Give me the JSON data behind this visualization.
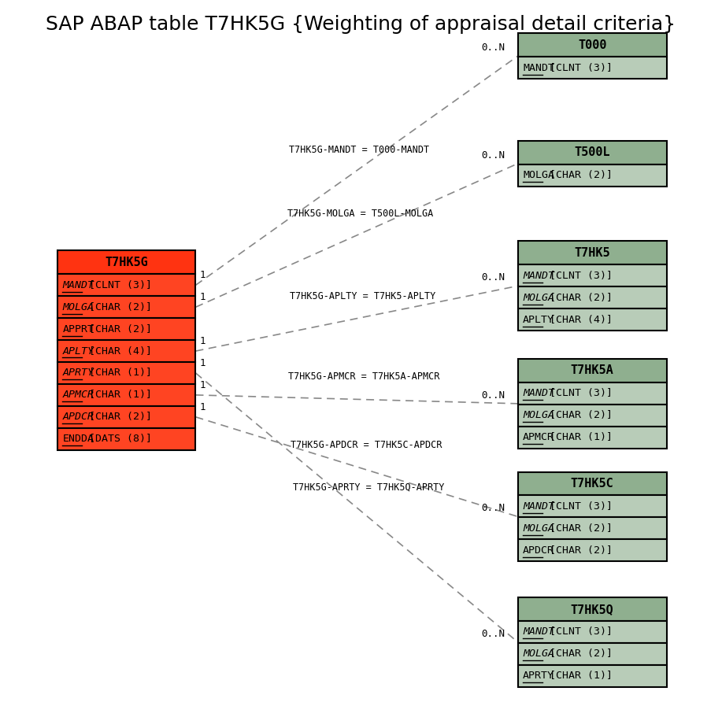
{
  "title": "SAP ABAP table T7HK5G {Weighting of appraisal detail criteria}",
  "title_fontsize": 18,
  "main_table": {
    "name": "T7HK5G",
    "header_color": "#FF3311",
    "row_color": "#FF4422",
    "border_color": "#000000",
    "fields": [
      {
        "name": "MANDT",
        "type": "[CLNT (3)]",
        "italic": true,
        "underline": true
      },
      {
        "name": "MOLGA",
        "type": "[CHAR (2)]",
        "italic": true,
        "underline": true
      },
      {
        "name": "APPRT",
        "type": "[CHAR (2)]",
        "italic": false,
        "underline": true
      },
      {
        "name": "APLTY",
        "type": "[CHAR (4)]",
        "italic": true,
        "underline": true
      },
      {
        "name": "APRTY",
        "type": "[CHAR (1)]",
        "italic": true,
        "underline": true
      },
      {
        "name": "APMCR",
        "type": "[CHAR (1)]",
        "italic": true,
        "underline": true
      },
      {
        "name": "APDCR",
        "type": "[CHAR (2)]",
        "italic": true,
        "underline": true
      },
      {
        "name": "ENDDA",
        "type": "[DATS (8)]",
        "italic": false,
        "underline": true
      }
    ]
  },
  "related_tables": [
    {
      "name": "T000",
      "header_color": "#8FAF8F",
      "row_color": "#B8CCB8",
      "border_color": "#000000",
      "fields": [
        {
          "name": "MANDT",
          "type": "[CLNT (3)]",
          "italic": false,
          "underline": true
        }
      ],
      "relation_label": "T7HK5G-MANDT = T000-MANDT",
      "from_field_idx": 0,
      "n_label": "0..N"
    },
    {
      "name": "T500L",
      "header_color": "#8FAF8F",
      "row_color": "#B8CCB8",
      "border_color": "#000000",
      "fields": [
        {
          "name": "MOLGA",
          "type": "[CHAR (2)]",
          "italic": false,
          "underline": true
        }
      ],
      "relation_label": "T7HK5G-MOLGA = T500L-MOLGA",
      "from_field_idx": 1,
      "n_label": "0..N"
    },
    {
      "name": "T7HK5",
      "header_color": "#8FAF8F",
      "row_color": "#B8CCB8",
      "border_color": "#000000",
      "fields": [
        {
          "name": "MANDT",
          "type": "[CLNT (3)]",
          "italic": true,
          "underline": true
        },
        {
          "name": "MOLGA",
          "type": "[CHAR (2)]",
          "italic": true,
          "underline": true
        },
        {
          "name": "APLTY",
          "type": "[CHAR (4)]",
          "italic": false,
          "underline": true
        }
      ],
      "relation_label": "T7HK5G-APLTY = T7HK5-APLTY",
      "from_field_idx": 3,
      "n_label": "0..N"
    },
    {
      "name": "T7HK5A",
      "header_color": "#8FAF8F",
      "row_color": "#B8CCB8",
      "border_color": "#000000",
      "fields": [
        {
          "name": "MANDT",
          "type": "[CLNT (3)]",
          "italic": true,
          "underline": true
        },
        {
          "name": "MOLGA",
          "type": "[CHAR (2)]",
          "italic": true,
          "underline": true
        },
        {
          "name": "APMCR",
          "type": "[CHAR (1)]",
          "italic": false,
          "underline": true
        }
      ],
      "relation_label": "T7HK5G-APMCR = T7HK5A-APMCR",
      "from_field_idx": 5,
      "n_label": "0..N"
    },
    {
      "name": "T7HK5C",
      "header_color": "#8FAF8F",
      "row_color": "#B8CCB8",
      "border_color": "#000000",
      "fields": [
        {
          "name": "MANDT",
          "type": "[CLNT (3)]",
          "italic": true,
          "underline": true
        },
        {
          "name": "MOLGA",
          "type": "[CHAR (2)]",
          "italic": true,
          "underline": true
        },
        {
          "name": "APDCR",
          "type": "[CHAR (2)]",
          "italic": false,
          "underline": true
        }
      ],
      "relation_label": "T7HK5G-APDCR = T7HK5C-APDCR",
      "from_field_idx": 6,
      "n_label": "0..N"
    },
    {
      "name": "T7HK5Q",
      "header_color": "#8FAF8F",
      "row_color": "#B8CCB8",
      "border_color": "#000000",
      "fields": [
        {
          "name": "MANDT",
          "type": "[CLNT (3)]",
          "italic": true,
          "underline": true
        },
        {
          "name": "MOLGA",
          "type": "[CHAR (2)]",
          "italic": true,
          "underline": true
        },
        {
          "name": "APRTY",
          "type": "[CHAR (1)]",
          "italic": false,
          "underline": true
        }
      ],
      "relation_label": "T7HK5G-APRTY = T7HK5Q-APRTY",
      "from_field_idx": 4,
      "n_label": "0..N"
    }
  ],
  "background_color": "#ffffff"
}
